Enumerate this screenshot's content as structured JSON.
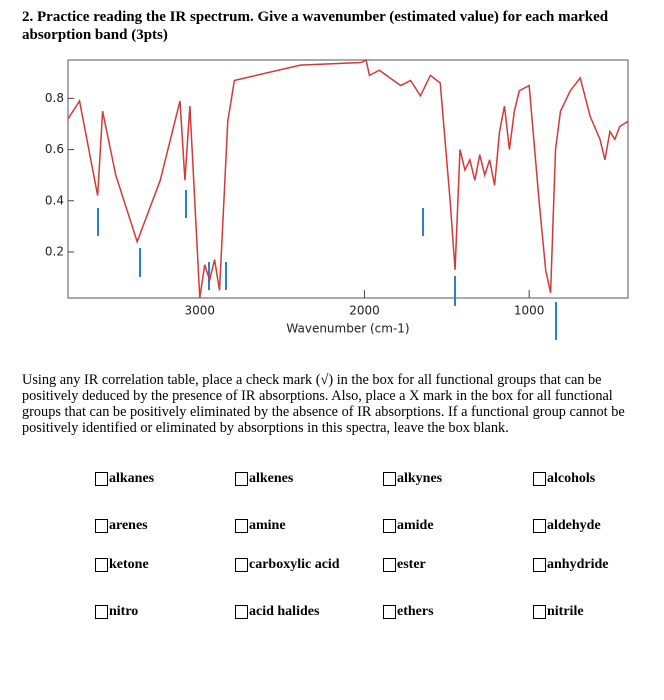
{
  "heading": "2. Practice reading the IR spectrum. Give a wavenumber (estimated value) for each marked absorption band (3pts)",
  "chart_data": {
    "type": "line",
    "x_label": "Wavenumber (cm-1)",
    "x": [
      3800,
      3730,
      3620,
      3590,
      3510,
      3380,
      3240,
      3120,
      3090,
      3060,
      3000,
      2970,
      2940,
      2910,
      2880,
      2830,
      2790,
      2390,
      2020,
      1990,
      1970,
      1910,
      1780,
      1720,
      1660,
      1600,
      1540,
      1480,
      1450,
      1420,
      1390,
      1360,
      1330,
      1300,
      1270,
      1240,
      1210,
      1180,
      1150,
      1120,
      1090,
      1060,
      1000,
      940,
      900,
      870,
      840,
      810,
      750,
      690,
      630,
      570,
      540,
      510,
      480,
      450,
      400
    ],
    "values": [
      0.72,
      0.79,
      0.42,
      0.75,
      0.5,
      0.24,
      0.48,
      0.79,
      0.48,
      0.77,
      0.02,
      0.15,
      0.09,
      0.17,
      0.05,
      0.71,
      0.87,
      0.93,
      0.94,
      0.95,
      0.89,
      0.91,
      0.85,
      0.87,
      0.81,
      0.89,
      0.86,
      0.4,
      0.13,
      0.6,
      0.52,
      0.56,
      0.48,
      0.58,
      0.5,
      0.56,
      0.46,
      0.67,
      0.77,
      0.6,
      0.75,
      0.83,
      0.85,
      0.4,
      0.13,
      0.04,
      0.6,
      0.75,
      0.83,
      0.88,
      0.73,
      0.64,
      0.56,
      0.67,
      0.64,
      0.69,
      0.71
    ],
    "color": "#d03a3a",
    "xlim": [
      3800,
      400
    ],
    "xticks": [
      3000,
      2000,
      1000
    ],
    "ylim": [
      0.02,
      0.95
    ],
    "yticks": [
      0.2,
      0.4,
      0.6,
      0.8
    ]
  },
  "instructions": "Using any IR correlation table, place a check mark (√) in the box for all functional groups that can be positively deduced by the presence of IR absorptions. Also, place a X mark in the box for all functional groups that can be positively eliminated by the absence of IR absorptions. If a functional group cannot be positively identified or eliminated by absorptions in this spectra, leave the box blank.",
  "options": [
    [
      "alkanes",
      "alkenes",
      "alkynes",
      "alcohols"
    ],
    [
      "arenes",
      "amine",
      "amide",
      "aldehyde"
    ],
    [
      "ketone",
      "carboxylic acid",
      "ester",
      "anhydride"
    ],
    [
      "nitro",
      "acid halides",
      "ethers",
      "nitrile"
    ]
  ]
}
